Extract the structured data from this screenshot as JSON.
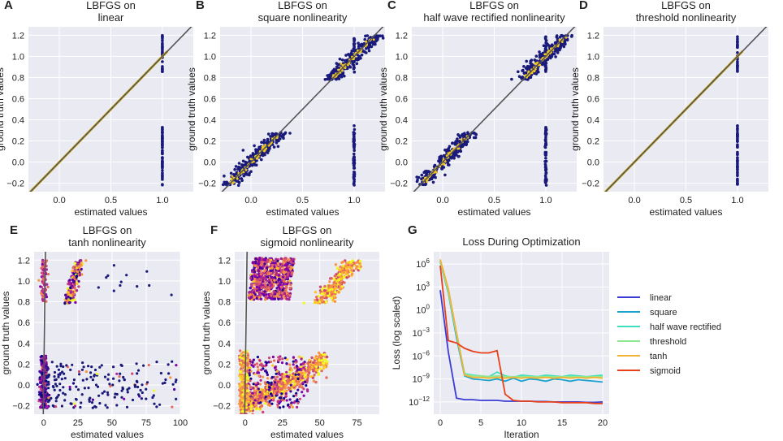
{
  "chart_data": [
    {
      "id": "A",
      "letter": "A",
      "type": "scatter",
      "title_lines": [
        "LBFGS on",
        "linear"
      ],
      "xlabel": "estimated values",
      "ylabel": "ground truth values",
      "xlim": [
        -0.3,
        1.3
      ],
      "ylim": [
        -0.28,
        1.28
      ],
      "xticks": [
        0.0,
        0.5,
        1.0
      ],
      "xtick_labels": [
        "0.0",
        "0.5",
        "1.0"
      ],
      "yticks": [
        -0.2,
        0.0,
        0.2,
        0.4,
        0.6,
        0.8,
        1.0,
        1.2
      ],
      "ytick_labels": [
        "−0.2",
        "0.0",
        "0.2",
        "0.4",
        "0.6",
        "0.8",
        "1.0",
        "1.2"
      ],
      "identity_line": true,
      "pattern": "exact_fit"
    },
    {
      "id": "B",
      "letter": "B",
      "type": "scatter",
      "title_lines": [
        "LBFGS on",
        "square nonlinearity"
      ],
      "xlabel": "estimated values",
      "ylabel": "ground truth values",
      "xlim": [
        -0.3,
        1.3
      ],
      "ylim": [
        -0.28,
        1.28
      ],
      "xticks": [
        0.0,
        0.5,
        1.0
      ],
      "xtick_labels": [
        "0.0",
        "0.5",
        "1.0"
      ],
      "yticks": [
        -0.2,
        0.0,
        0.2,
        0.4,
        0.6,
        0.8,
        1.0,
        1.2
      ],
      "ytick_labels": [
        "−0.2",
        "0.0",
        "0.2",
        "0.4",
        "0.6",
        "0.8",
        "1.0",
        "1.2"
      ],
      "identity_line": true,
      "pattern": "noisy_fit"
    },
    {
      "id": "C",
      "letter": "C",
      "type": "scatter",
      "title_lines": [
        "LBFGS on",
        "half wave rectified nonlinearity"
      ],
      "xlabel": "estimated values",
      "ylabel": "ground truth values",
      "xlim": [
        -0.3,
        1.3
      ],
      "ylim": [
        -0.28,
        1.28
      ],
      "xticks": [
        0.0,
        0.5,
        1.0
      ],
      "xtick_labels": [
        "0.0",
        "0.5",
        "1.0"
      ],
      "yticks": [
        -0.2,
        0.0,
        0.2,
        0.4,
        0.6,
        0.8,
        1.0,
        1.2
      ],
      "ytick_labels": [
        "−0.2",
        "0.0",
        "0.2",
        "0.4",
        "0.6",
        "0.8",
        "1.0",
        "1.2"
      ],
      "identity_line": true,
      "pattern": "noisy_fit"
    },
    {
      "id": "D",
      "letter": "D",
      "type": "scatter",
      "title_lines": [
        "LBFGS on",
        "threshold nonlinearity"
      ],
      "xlabel": "estimated values",
      "ylabel": "ground truth values",
      "xlim": [
        -0.3,
        1.3
      ],
      "ylim": [
        -0.28,
        1.28
      ],
      "xticks": [
        0.0,
        0.5,
        1.0
      ],
      "xtick_labels": [
        "0.0",
        "0.5",
        "1.0"
      ],
      "yticks": [
        -0.2,
        0.0,
        0.2,
        0.4,
        0.6,
        0.8,
        1.0,
        1.2
      ],
      "ytick_labels": [
        "−0.2",
        "0.0",
        "0.2",
        "0.4",
        "0.6",
        "0.8",
        "1.0",
        "1.2"
      ],
      "identity_line": true,
      "pattern": "exact_fit"
    },
    {
      "id": "E",
      "letter": "E",
      "type": "scatter",
      "title_lines": [
        "LBFGS on",
        "tanh nonlinearity"
      ],
      "xlabel": "estimated values",
      "ylabel": "ground truth values",
      "xlim": [
        -7,
        100
      ],
      "ylim": [
        -0.28,
        1.28
      ],
      "xticks": [
        0,
        25,
        50,
        75,
        100
      ],
      "xtick_labels": [
        "0",
        "25",
        "50",
        "75",
        "100"
      ],
      "yticks": [
        -0.2,
        0.0,
        0.2,
        0.4,
        0.6,
        0.8,
        1.0,
        1.2
      ],
      "ytick_labels": [
        "−0.2",
        "0.0",
        "0.2",
        "0.4",
        "0.6",
        "0.8",
        "1.0",
        "1.2"
      ],
      "identity_line": true,
      "pattern": "tanh"
    },
    {
      "id": "F",
      "letter": "F",
      "type": "scatter",
      "title_lines": [
        "LBFGS on",
        "sigmoid nonlinearity"
      ],
      "xlabel": "estimated values",
      "ylabel": "ground truth values",
      "xlim": [
        -7,
        90
      ],
      "ylim": [
        -0.28,
        1.28
      ],
      "xticks": [
        0,
        25,
        50,
        75
      ],
      "xtick_labels": [
        "0",
        "25",
        "50",
        "75"
      ],
      "yticks": [
        -0.2,
        0.0,
        0.2,
        0.4,
        0.6,
        0.8,
        1.0,
        1.2
      ],
      "ytick_labels": [
        "−0.2",
        "0.0",
        "0.2",
        "0.4",
        "0.6",
        "0.8",
        "1.0",
        "1.2"
      ],
      "identity_line": true,
      "pattern": "sigmoid"
    },
    {
      "id": "G",
      "letter": "G",
      "type": "line",
      "title_lines": [
        "Loss During Optimization"
      ],
      "xlabel": "Iteration",
      "ylabel": "Loss (log scaled)",
      "yscale": "log10",
      "xlim": [
        -0.8,
        20.8
      ],
      "ylim_log10": [
        -13.6,
        7.6
      ],
      "xticks": [
        0,
        5,
        10,
        15,
        20
      ],
      "xtick_labels": [
        "0",
        "5",
        "10",
        "15",
        "20"
      ],
      "yticks_log10": [
        -12,
        -9,
        -6,
        -3,
        0,
        3,
        6
      ],
      "ytick_labels": [
        "10^-12",
        "10^-9",
        "10^-6",
        "10^-3",
        "10^0",
        "10^3",
        "10^6"
      ],
      "x": [
        0,
        1,
        2,
        3,
        4,
        5,
        6,
        7,
        8,
        9,
        10,
        11,
        12,
        13,
        14,
        15,
        16,
        17,
        18,
        19,
        20
      ],
      "series": [
        {
          "name": "linear",
          "color": "#3b3bd6",
          "log10_values": [
            2.6,
            -5.5,
            -11.5,
            -11.7,
            -11.7,
            -11.8,
            -11.8,
            -11.8,
            -11.9,
            -11.9,
            -11.9,
            -11.9,
            -11.95,
            -11.95,
            -12.0,
            -12.0,
            -12.0,
            -12.0,
            -12.05,
            -12.05,
            -12.0
          ]
        },
        {
          "name": "square",
          "color": "#1aa3cf",
          "log10_values": [
            6.3,
            2.2,
            -3.6,
            -8.6,
            -9.0,
            -9.1,
            -9.2,
            -9.0,
            -9.3,
            -8.9,
            -9.3,
            -9.0,
            -9.1,
            -9.3,
            -9.0,
            -9.1,
            -9.3,
            -9.1,
            -9.2,
            -9.3,
            -9.4
          ]
        },
        {
          "name": "half wave rectified",
          "color": "#3fe0c0",
          "log10_values": [
            6.5,
            2.5,
            -3.0,
            -8.3,
            -8.5,
            -8.6,
            -8.7,
            -8.1,
            -8.6,
            -8.8,
            -8.5,
            -8.6,
            -8.7,
            -8.5,
            -8.6,
            -8.7,
            -8.5,
            -8.6,
            -8.7,
            -8.6,
            -8.5
          ]
        },
        {
          "name": "threshold",
          "color": "#8fe88f",
          "log10_values": [
            6.4,
            2.4,
            -3.2,
            -8.4,
            -8.6,
            -8.6,
            -8.7,
            -8.6,
            -8.7,
            -8.7,
            -8.7,
            -8.7,
            -8.7,
            -8.7,
            -8.7,
            -8.7,
            -8.7,
            -8.7,
            -8.7,
            -8.7,
            -8.7
          ]
        },
        {
          "name": "tanh",
          "color": "#f2b233",
          "log10_values": [
            6.6,
            2.8,
            -2.9,
            -8.5,
            -8.8,
            -8.8,
            -8.9,
            -8.8,
            -8.9,
            -8.8,
            -8.9,
            -8.8,
            -8.9,
            -8.8,
            -8.9,
            -8.8,
            -8.9,
            -8.8,
            -8.9,
            -8.8,
            -8.9
          ]
        },
        {
          "name": "sigmoid",
          "color": "#e8401a",
          "log10_values": [
            5.8,
            -4.0,
            -4.3,
            -5.0,
            -5.4,
            -5.6,
            -5.6,
            -5.3,
            -11.0,
            -11.8,
            -11.9,
            -11.9,
            -12.0,
            -12.0,
            -12.0,
            -12.1,
            -12.1,
            -12.1,
            -12.1,
            -12.2,
            -12.2
          ]
        }
      ]
    }
  ]
}
